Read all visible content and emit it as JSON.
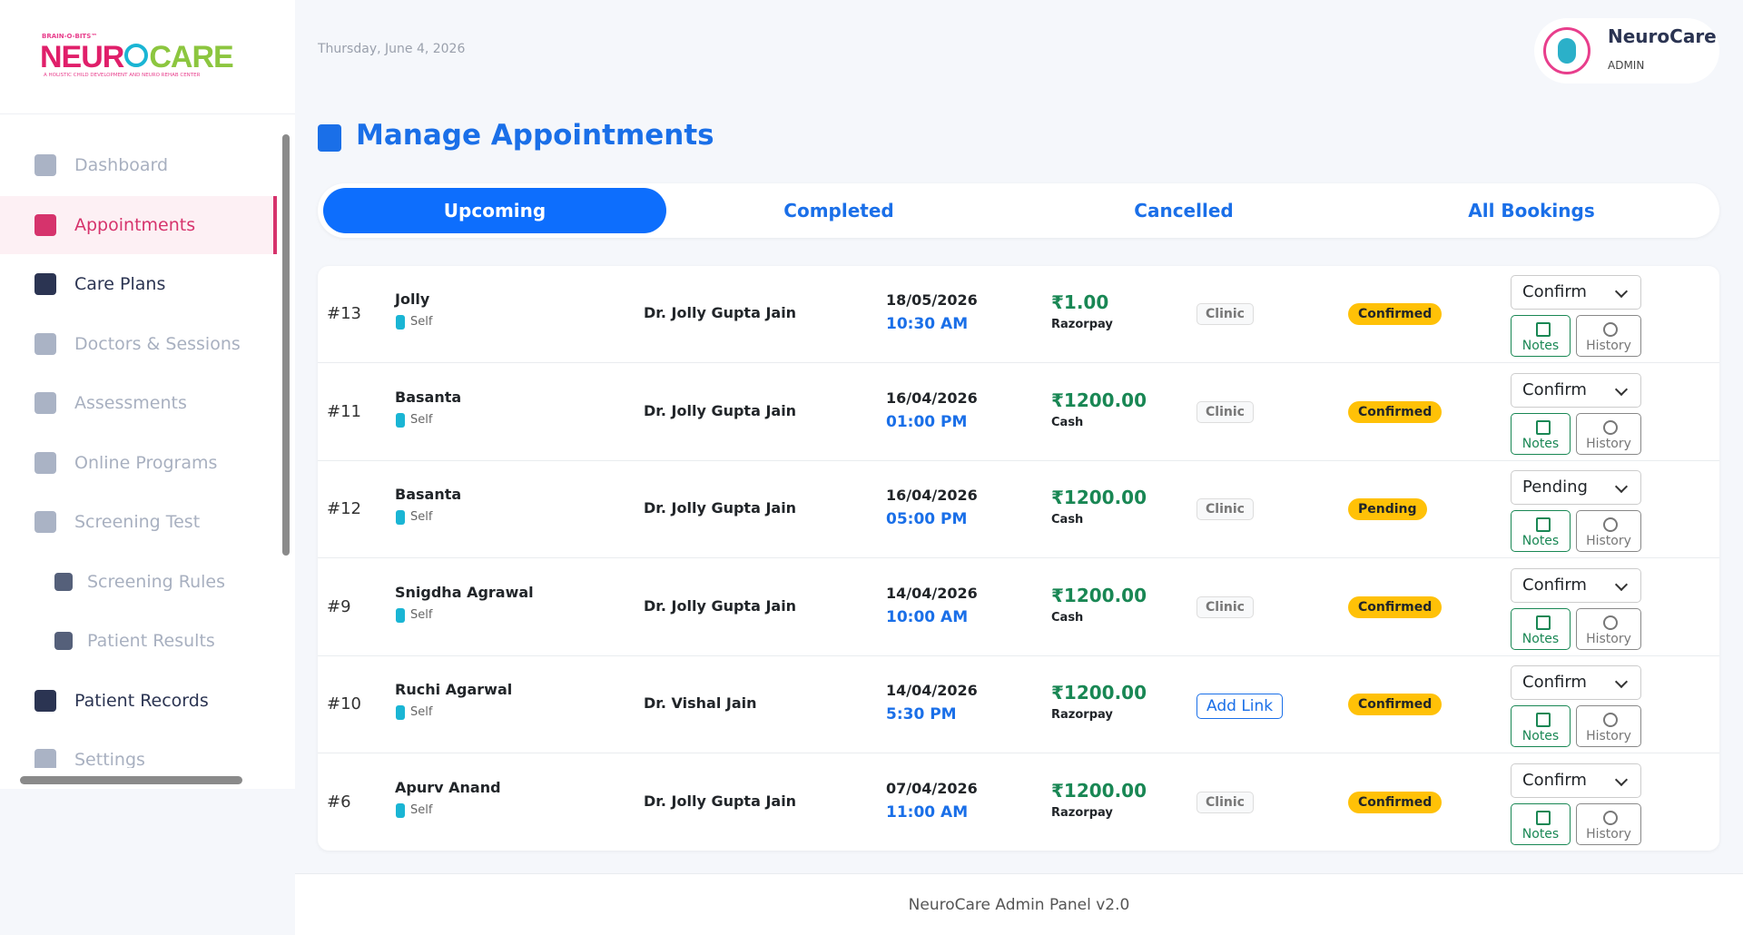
{
  "logo": {
    "top": "BRAIN-O-BITS™",
    "part1": "NEUR",
    "part2": "CARE",
    "tagline": "A HOLISTIC CHILD DEVELOPMENT AND NEURO REHAB CENTER"
  },
  "header": {
    "date": "Thursday, June 4, 2026"
  },
  "user": {
    "name": "NeuroCare",
    "role": "ADMIN"
  },
  "nav": [
    {
      "label": "Dashboard",
      "state": "inactive"
    },
    {
      "label": "Appointments",
      "state": "active"
    },
    {
      "label": "Care Plans",
      "state": "highlight"
    },
    {
      "label": "Doctors & Sessions",
      "state": "inactive"
    },
    {
      "label": "Assessments",
      "state": "inactive"
    },
    {
      "label": "Online Programs",
      "state": "inactive"
    },
    {
      "label": "Screening Test",
      "state": "inactive"
    },
    {
      "label": "Screening Rules",
      "state": "sub"
    },
    {
      "label": "Patient Results",
      "state": "sub"
    },
    {
      "label": "Patient Records",
      "state": "highlight"
    },
    {
      "label": "Settings",
      "state": "inactive"
    }
  ],
  "page_title": "Manage Appointments",
  "tabs": [
    "Upcoming",
    "Completed",
    "Cancelled",
    "All Bookings"
  ],
  "actions": {
    "notes": "Notes",
    "history": "History"
  },
  "appointments": [
    {
      "id": "#13",
      "patient": "Jolly",
      "relation": "Self",
      "doctor": "Dr. Jolly Gupta Jain",
      "date": "18/05/2026",
      "time": "10:30 AM",
      "amount": "₹1.00",
      "method": "Razorpay",
      "mode": "Clinic",
      "status": "Confirmed",
      "action": "Confirm"
    },
    {
      "id": "#11",
      "patient": "Basanta",
      "relation": "Self",
      "doctor": "Dr. Jolly Gupta Jain",
      "date": "16/04/2026",
      "time": "01:00 PM",
      "amount": "₹1200.00",
      "method": "Cash",
      "mode": "Clinic",
      "status": "Confirmed",
      "action": "Confirm"
    },
    {
      "id": "#12",
      "patient": "Basanta",
      "relation": "Self",
      "doctor": "Dr. Jolly Gupta Jain",
      "date": "16/04/2026",
      "time": "05:00 PM",
      "amount": "₹1200.00",
      "method": "Cash",
      "mode": "Clinic",
      "status": "Pending",
      "action": "Pending"
    },
    {
      "id": "#9",
      "patient": "Snigdha Agrawal",
      "relation": "Self",
      "doctor": "Dr. Jolly Gupta Jain",
      "date": "14/04/2026",
      "time": "10:00 AM",
      "amount": "₹1200.00",
      "method": "Cash",
      "mode": "Clinic",
      "status": "Confirmed",
      "action": "Confirm"
    },
    {
      "id": "#10",
      "patient": "Ruchi Agarwal",
      "relation": "Self",
      "doctor": "Dr. Vishal Jain",
      "date": "14/04/2026",
      "time": "5:30 PM",
      "amount": "₹1200.00",
      "method": "Razorpay",
      "mode": "Add Link",
      "status": "Confirmed",
      "action": "Confirm"
    },
    {
      "id": "#6",
      "patient": "Apurv Anand",
      "relation": "Self",
      "doctor": "Dr. Jolly Gupta Jain",
      "date": "07/04/2026",
      "time": "11:00 AM",
      "amount": "₹1200.00",
      "method": "Razorpay",
      "mode": "Clinic",
      "status": "Confirmed",
      "action": "Confirm"
    }
  ],
  "footer": "NeuroCare Admin Panel v2.0"
}
